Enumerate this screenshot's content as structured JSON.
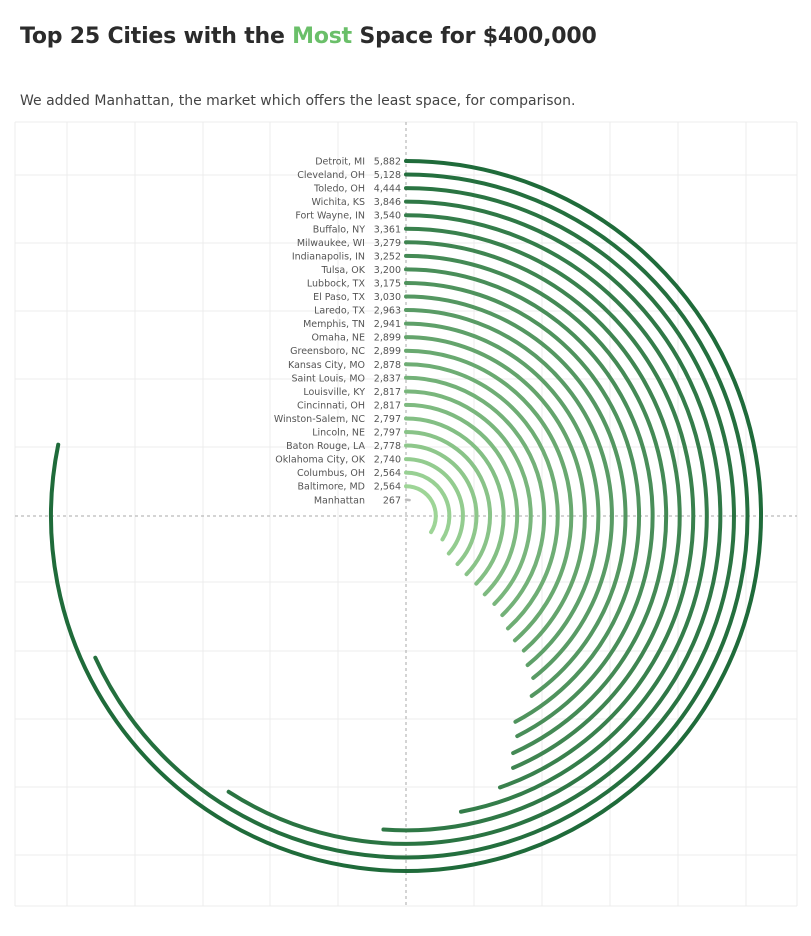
{
  "header": {
    "title_prefix": "Top 25 Cities with the ",
    "title_highlight": "Most",
    "title_suffix": " Space for $400,000",
    "subtitle": "We added Manhattan, the market which offers the least space, for comparison."
  },
  "colors": {
    "accent": "#6abf69",
    "arc_dark": "#1f6b3a",
    "arc_light": "#a3d99b",
    "gridline": "#ececec",
    "axis_dashed": "#aaaaaa"
  },
  "chart_data": {
    "type": "radial-bar",
    "value_max": 5882,
    "full_circle_value": 7520,
    "categories": [
      "Detroit, MI",
      "Cleveland, OH",
      "Toledo, OH",
      "Wichita, KS",
      "Fort Wayne, IN",
      "Buffalo, NY",
      "Milwaukee, WI",
      "Indianapolis, IN",
      "Tulsa, OK",
      "Lubbock, TX",
      "El Paso, TX",
      "Laredo, TX",
      "Memphis, TN",
      "Omaha, NE",
      "Greensboro, NC",
      "Kansas City, MO",
      "Saint Louis, MO",
      "Louisville, KY",
      "Cincinnati, OH",
      "Winston-Salem, NC",
      "Lincoln, NE",
      "Baton Rouge, LA",
      "Oklahoma City, OK",
      "Columbus, OH",
      "Baltimore, MD",
      "Manhattan"
    ],
    "values": [
      5882,
      5128,
      4444,
      3846,
      3540,
      3361,
      3279,
      3252,
      3200,
      3175,
      3030,
      2963,
      2941,
      2899,
      2899,
      2878,
      2837,
      2817,
      2817,
      2797,
      2797,
      2778,
      2740,
      2564,
      2564,
      267
    ],
    "value_labels": [
      "5,882",
      "5,128",
      "4,444",
      "3,846",
      "3,540",
      "3,361",
      "3,279",
      "3,252",
      "3,200",
      "3,175",
      "3,030",
      "2,963",
      "2,941",
      "2,899",
      "2,899",
      "2,878",
      "2,837",
      "2,817",
      "2,817",
      "2,797",
      "2,797",
      "2,778",
      "2,740",
      "2,564",
      "2,564",
      "267"
    ],
    "grid": true
  }
}
